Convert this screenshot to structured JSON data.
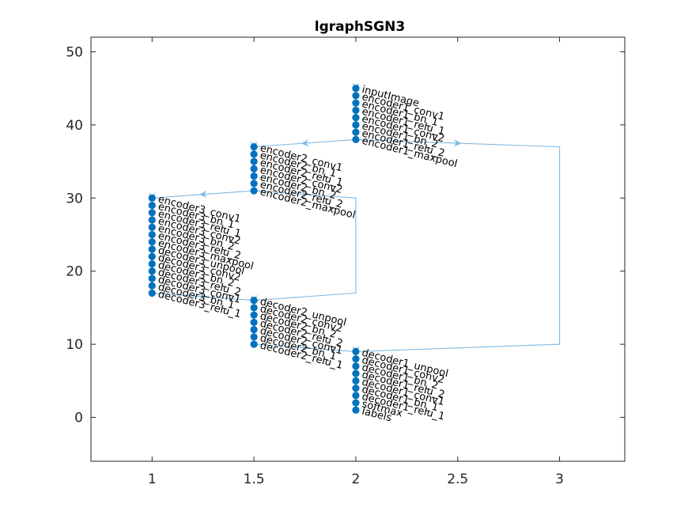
{
  "chart_data": {
    "type": "graph",
    "title": "lgraphSGN3",
    "xlim": [
      0.7,
      3.32
    ],
    "ylim": [
      -6,
      52
    ],
    "xticks": [
      1,
      1.5,
      2,
      2.5,
      3
    ],
    "yticks": [
      0,
      10,
      20,
      30,
      40,
      50
    ],
    "xtick_labels": [
      "1",
      "1.5",
      "2",
      "2.5",
      "3"
    ],
    "ytick_labels": [
      "0",
      "10",
      "20",
      "30",
      "40",
      "50"
    ],
    "colors": {
      "node": "#0072bd",
      "edge": "#80b9e2",
      "axis": "#262626",
      "text": "#000000"
    },
    "nodes": [
      {
        "label": "inputImage",
        "x": 2,
        "y": 45
      },
      {
        "label": "encoder1_conv1",
        "x": 2,
        "y": 44
      },
      {
        "label": "encoder1_bn_1",
        "x": 2,
        "y": 43
      },
      {
        "label": "encoder1_relu_1",
        "x": 2,
        "y": 42
      },
      {
        "label": "encoder1_conv2",
        "x": 2,
        "y": 41
      },
      {
        "label": "encoder1_bn_2",
        "x": 2,
        "y": 40
      },
      {
        "label": "encoder1_relu_2",
        "x": 2,
        "y": 39
      },
      {
        "label": "encoder1_maxpool",
        "x": 2,
        "y": 38
      },
      {
        "label": "encoder2_conv1",
        "x": 1.5,
        "y": 37
      },
      {
        "label": "encoder2_bn_1",
        "x": 1.5,
        "y": 36
      },
      {
        "label": "encoder2_relu_1",
        "x": 1.5,
        "y": 35
      },
      {
        "label": "encoder2_conv2",
        "x": 1.5,
        "y": 34
      },
      {
        "label": "encoder2_bn_2",
        "x": 1.5,
        "y": 33
      },
      {
        "label": "encoder2_relu_2",
        "x": 1.5,
        "y": 32
      },
      {
        "label": "encoder2_maxpool",
        "x": 1.5,
        "y": 31
      },
      {
        "label": "encoder3_conv1",
        "x": 1,
        "y": 30
      },
      {
        "label": "encoder3_bn_1",
        "x": 1,
        "y": 29
      },
      {
        "label": "encoder3_relu_1",
        "x": 1,
        "y": 28
      },
      {
        "label": "encoder3_conv2",
        "x": 1,
        "y": 27
      },
      {
        "label": "encoder3_bn_2",
        "x": 1,
        "y": 26
      },
      {
        "label": "encoder3_relu_2",
        "x": 1,
        "y": 25
      },
      {
        "label": "encoder3_maxpool",
        "x": 1,
        "y": 24
      },
      {
        "label": "decoder3_unpool",
        "x": 1,
        "y": 23
      },
      {
        "label": "decoder3_conv2",
        "x": 1,
        "y": 22
      },
      {
        "label": "decoder3_bn_2",
        "x": 1,
        "y": 21
      },
      {
        "label": "decoder3_relu_2",
        "x": 1,
        "y": 20
      },
      {
        "label": "decoder3_conv1",
        "x": 1,
        "y": 19
      },
      {
        "label": "decoder3_bn_1",
        "x": 1,
        "y": 18
      },
      {
        "label": "decoder3_relu_1",
        "x": 1,
        "y": 17
      },
      {
        "label": "decoder2_unpool",
        "x": 1.5,
        "y": 16
      },
      {
        "label": "decoder2_conv2",
        "x": 1.5,
        "y": 15
      },
      {
        "label": "decoder2_bn_2",
        "x": 1.5,
        "y": 14
      },
      {
        "label": "decoder2_relu_2",
        "x": 1.5,
        "y": 13
      },
      {
        "label": "decoder2_conv1",
        "x": 1.5,
        "y": 12
      },
      {
        "label": "decoder2_bn_1",
        "x": 1.5,
        "y": 11
      },
      {
        "label": "decoder2_relu_1",
        "x": 1.5,
        "y": 10
      },
      {
        "label": "decoder1_unpool",
        "x": 2,
        "y": 9
      },
      {
        "label": "decoder1_conv2",
        "x": 2,
        "y": 8
      },
      {
        "label": "decoder1_bn_2",
        "x": 2,
        "y": 7
      },
      {
        "label": "decoder1_relu_2",
        "x": 2,
        "y": 6
      },
      {
        "label": "decoder1_conv1",
        "x": 2,
        "y": 5
      },
      {
        "label": "decoder1_bn_1",
        "x": 2,
        "y": 4
      },
      {
        "label": "decoder1_relu_1",
        "x": 2,
        "y": 3
      },
      {
        "label": "softmax",
        "x": 2,
        "y": 2
      },
      {
        "label": "labels",
        "x": 2,
        "y": 1
      }
    ],
    "chains": [
      {
        "from": 0,
        "to": 7
      },
      {
        "from": 8,
        "to": 14
      },
      {
        "from": 15,
        "to": 28
      },
      {
        "from": 29,
        "to": 35
      },
      {
        "from": 36,
        "to": 44
      }
    ],
    "edges": [
      {
        "name": "encoder1-to-encoder2",
        "points": [
          [
            2,
            38
          ],
          [
            1.5,
            37
          ]
        ]
      },
      {
        "name": "encoder2-to-encoder3",
        "points": [
          [
            1.5,
            31
          ],
          [
            1,
            30
          ]
        ]
      },
      {
        "name": "decoder3-to-decoder2",
        "points": [
          [
            1,
            17
          ],
          [
            1.5,
            16
          ]
        ]
      },
      {
        "name": "decoder2-to-decoder1",
        "points": [
          [
            1.5,
            10
          ],
          [
            2,
            9
          ]
        ]
      },
      {
        "name": "skip-encoder2-to-decoder2",
        "points": [
          [
            1.5,
            31
          ],
          [
            2,
            30
          ],
          [
            2,
            17
          ],
          [
            1.5,
            16
          ]
        ]
      },
      {
        "name": "skip-encoder1-to-decoder1",
        "points": [
          [
            2,
            38
          ],
          [
            3,
            37
          ],
          [
            3,
            10
          ],
          [
            2,
            9
          ]
        ]
      }
    ]
  }
}
